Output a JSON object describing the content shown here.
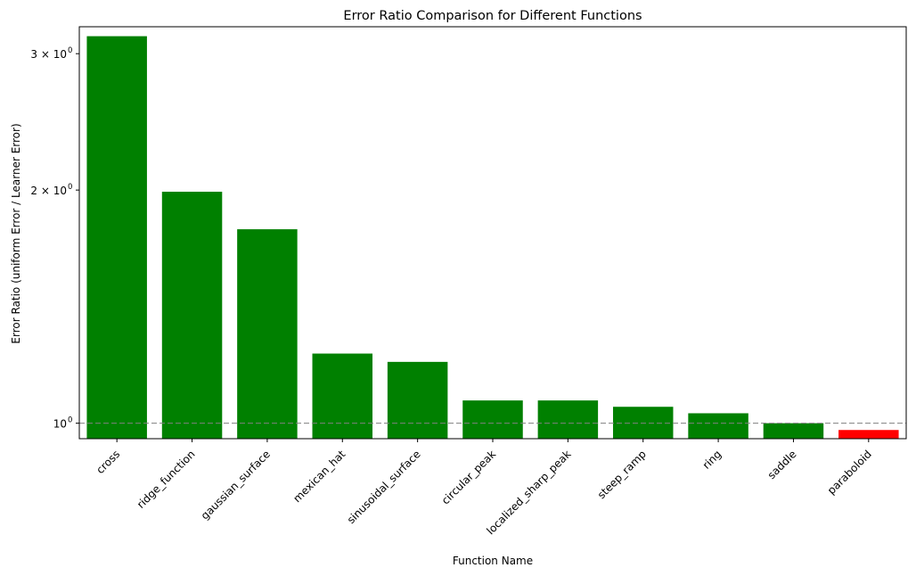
{
  "chart_data": {
    "type": "bar",
    "title": "Error Ratio Comparison for Different Functions",
    "xlabel": "Function Name",
    "ylabel": "Error Ratio (uniform Error / Learner Error)",
    "yscale": "log",
    "ylim": [
      0.955,
      3.25
    ],
    "yticks": [
      {
        "value": 1,
        "label": "10"
      },
      {
        "value": 2,
        "label": "2 × 10"
      },
      {
        "value": 3,
        "label": "3 × 10"
      }
    ],
    "ytick_exponent": "0",
    "reference_line": {
      "value": 1.0,
      "style": "dashed",
      "color": "#808080"
    },
    "categories": [
      "cross",
      "ridge_function",
      "gaussian_surface",
      "mexican_hat",
      "sinusoidal_surface",
      "circular_peak",
      "localized_sharp_peak",
      "steep_ramp",
      "ring",
      "saddle",
      "paraboloid"
    ],
    "values": [
      3.16,
      1.99,
      1.78,
      1.23,
      1.2,
      1.07,
      1.07,
      1.05,
      1.03,
      1.0,
      0.98
    ],
    "colors": [
      "#008000",
      "#008000",
      "#008000",
      "#008000",
      "#008000",
      "#008000",
      "#008000",
      "#008000",
      "#008000",
      "#008000",
      "#ff0000"
    ],
    "grid": false,
    "legend": "none"
  }
}
